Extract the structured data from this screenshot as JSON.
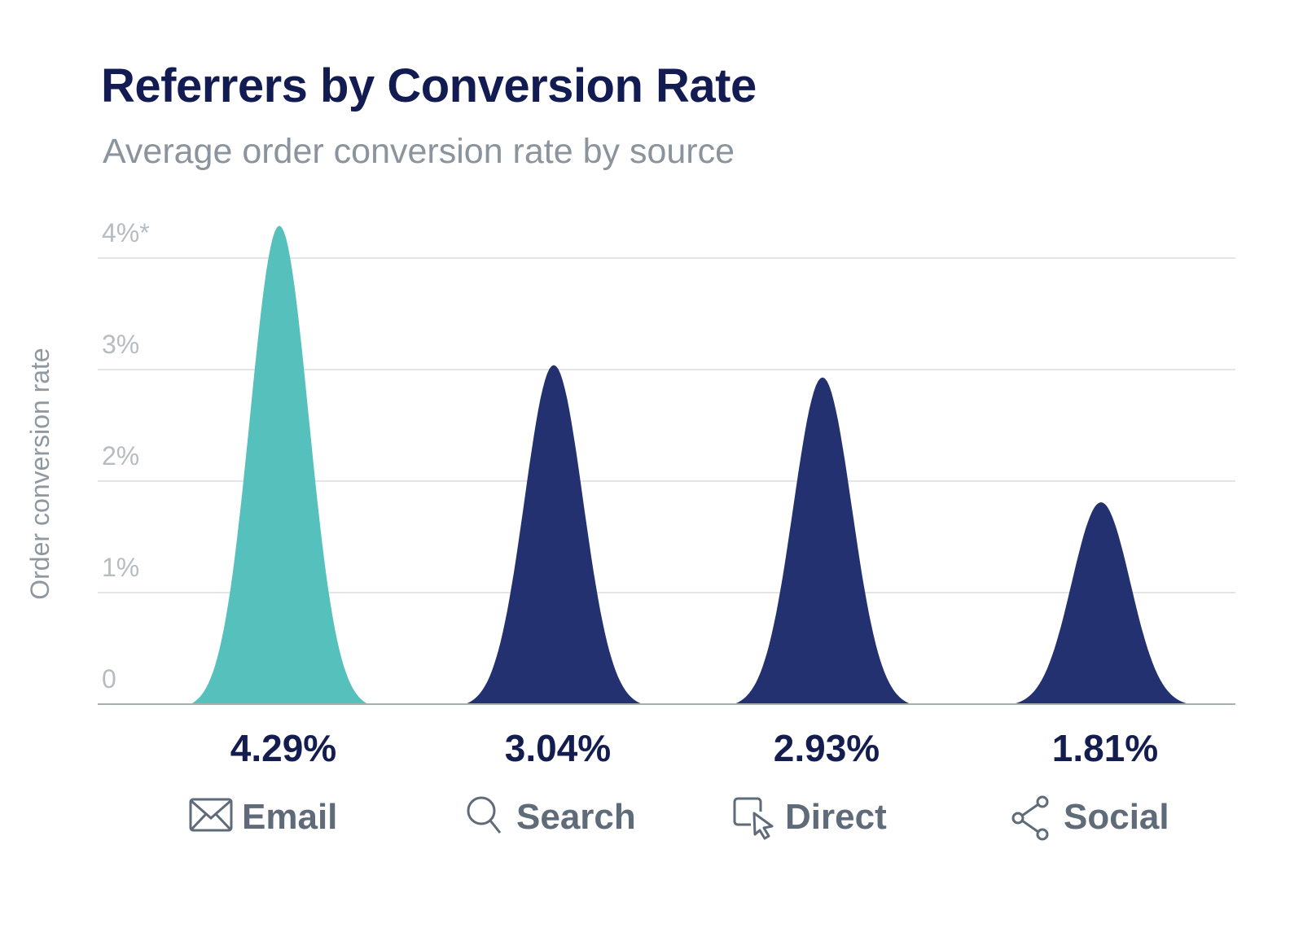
{
  "chart_data": {
    "type": "area",
    "title": "Referrers by Conversion Rate",
    "subtitle": "Average order conversion rate by source",
    "ylabel": "Order conversion rate",
    "ylim": [
      0,
      4
    ],
    "yticks": [
      {
        "value": 0,
        "label": "0"
      },
      {
        "value": 1,
        "label": "1%"
      },
      {
        "value": 2,
        "label": "2%"
      },
      {
        "value": 3,
        "label": "3%"
      },
      {
        "value": 4,
        "label": "4%*"
      }
    ],
    "grid": true,
    "categories": [
      "Email",
      "Search",
      "Direct",
      "Social"
    ],
    "values": [
      4.29,
      3.04,
      2.93,
      1.81
    ],
    "value_labels": [
      "4.29%",
      "3.04%",
      "2.93%",
      "1.81%"
    ],
    "icons": [
      "envelope-icon",
      "search-icon",
      "cursor-click-icon",
      "share-icon"
    ],
    "colors": [
      "#56c1bc",
      "#233170",
      "#233170",
      "#233170"
    ]
  }
}
